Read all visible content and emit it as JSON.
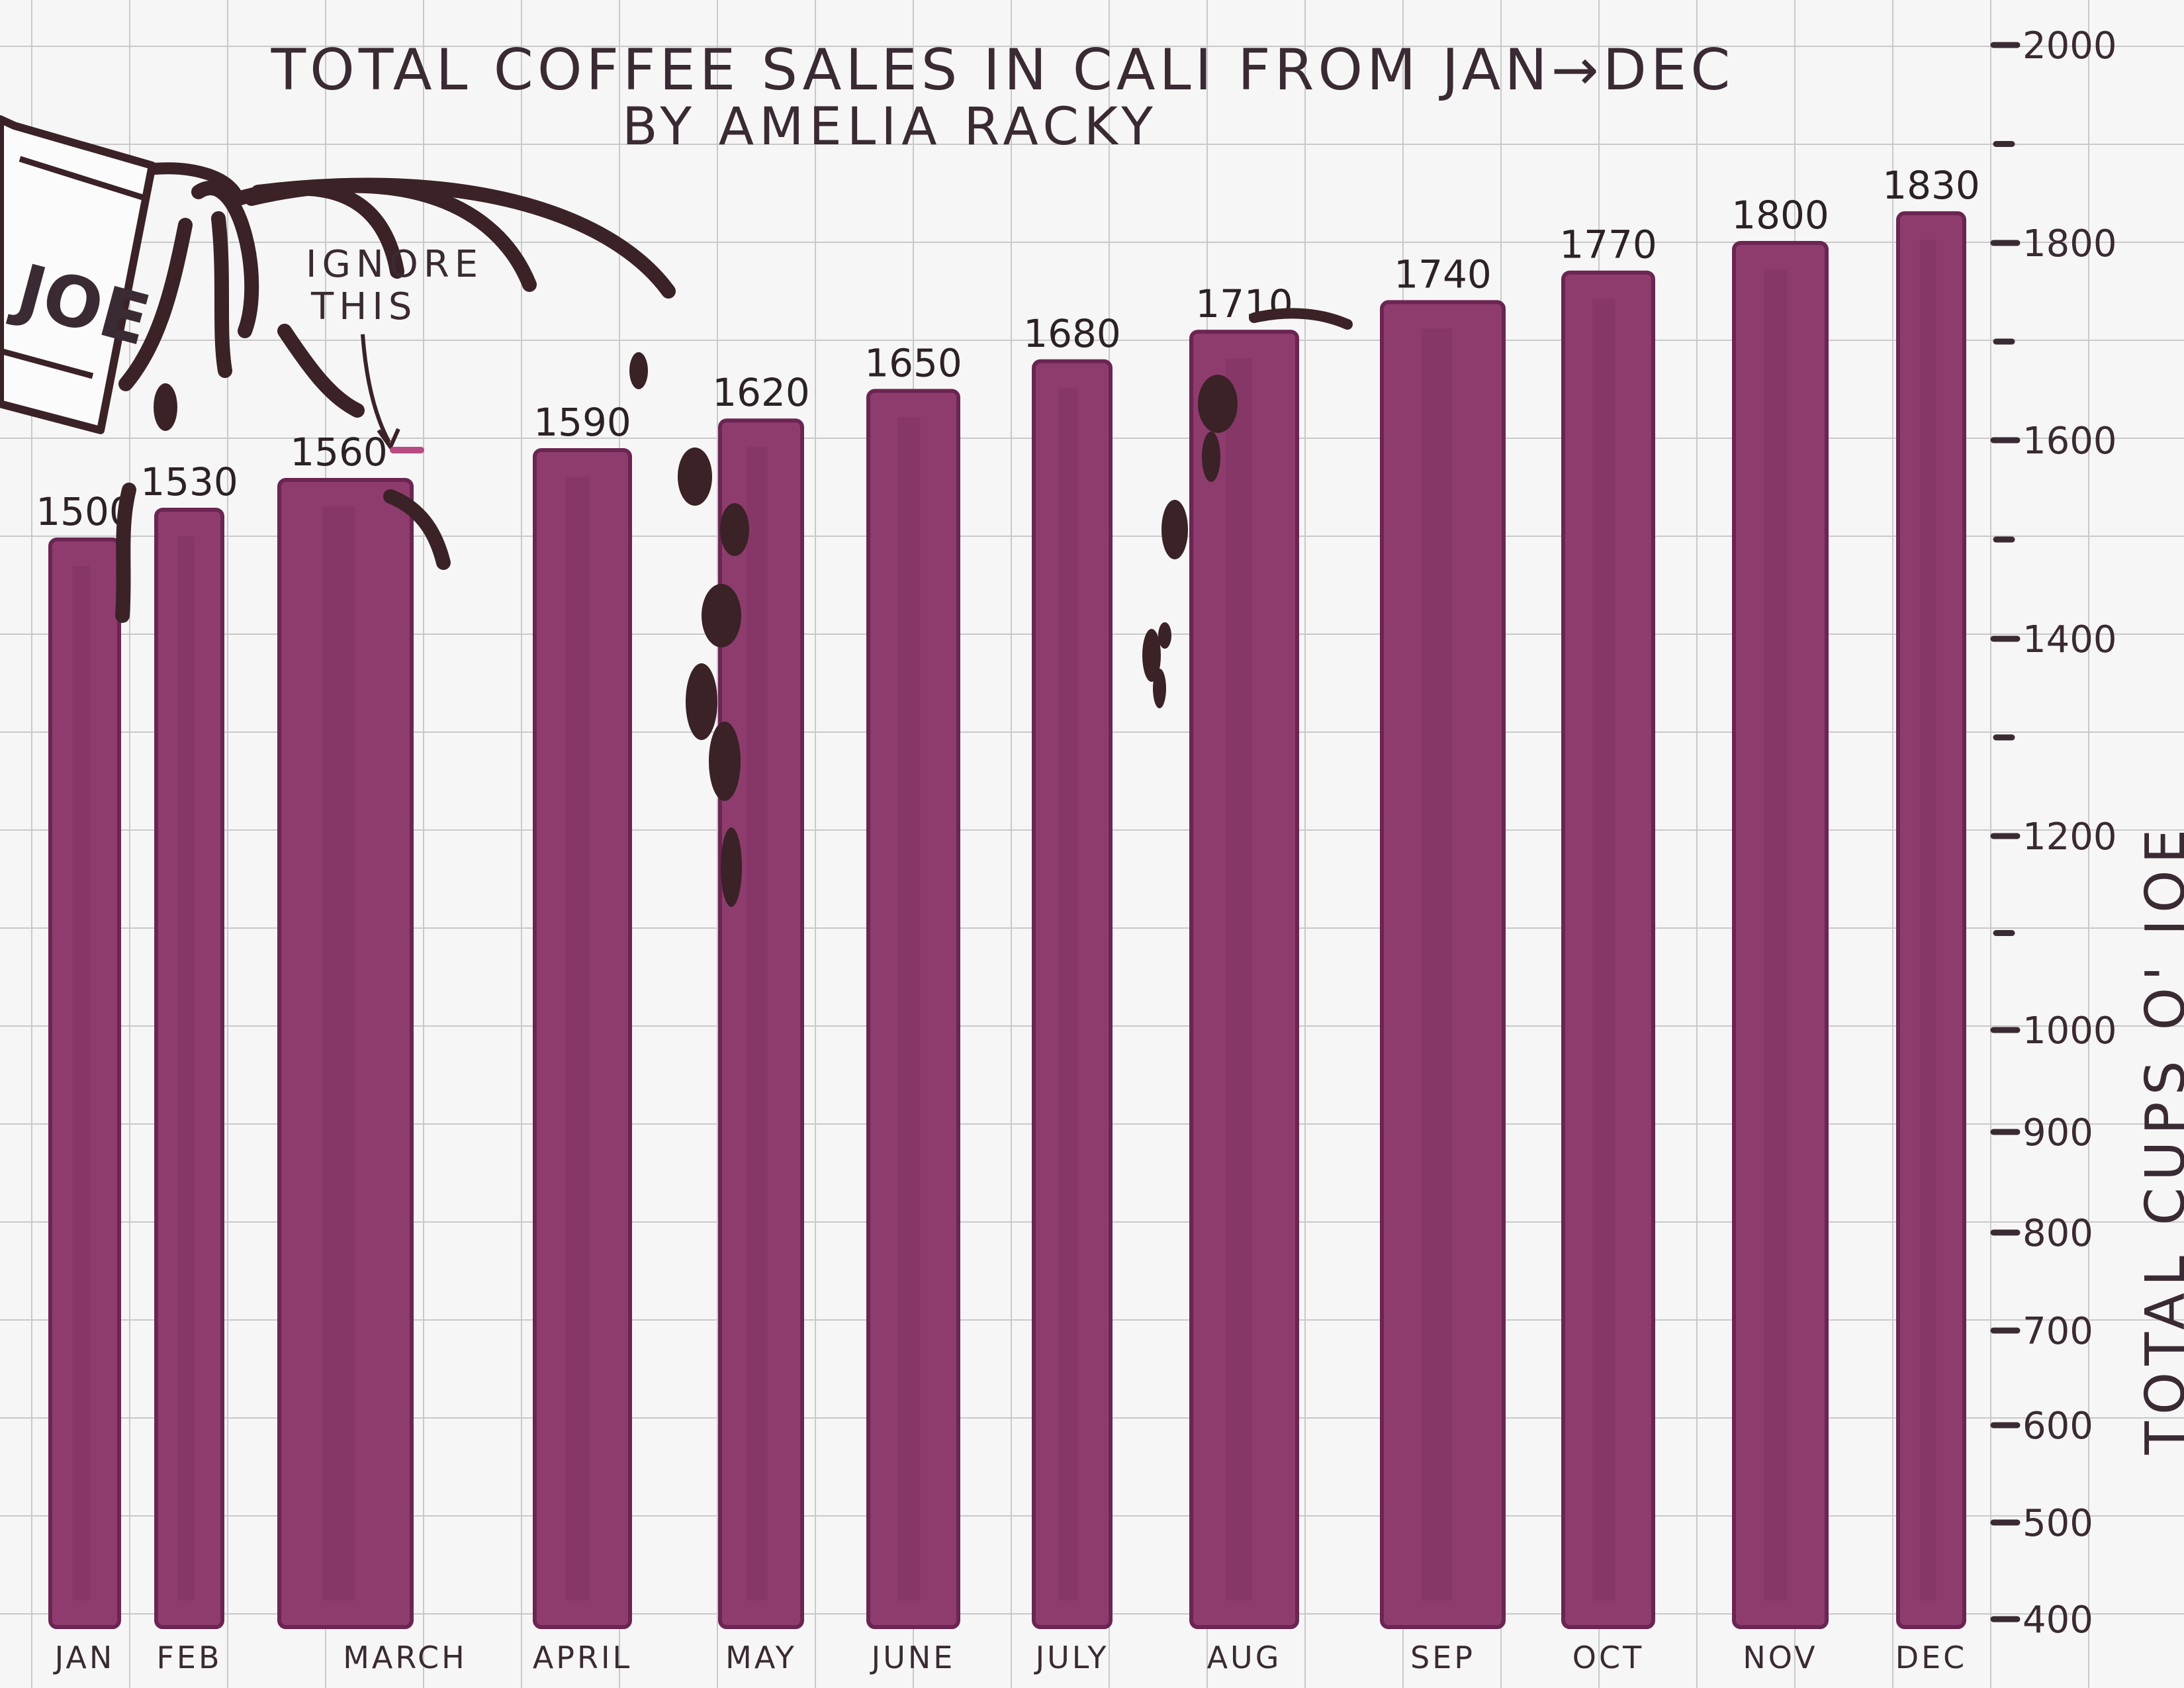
{
  "chart_data": {
    "type": "bar",
    "title": "TOTAL COFFEE SALES IN CALI FROM JAN→DEC",
    "subtitle": "BY AMELIA RACKY",
    "categories": [
      "JAN",
      "FEB",
      "MARCH",
      "APRIL",
      "MAY",
      "JUNE",
      "JULY",
      "AUG",
      "SEP",
      "OCT",
      "NOV",
      "DEC"
    ],
    "values": [
      1500,
      1530,
      1560,
      1590,
      1620,
      1650,
      1680,
      1710,
      1740,
      1770,
      1800,
      1830
    ],
    "data_labels": [
      "1500",
      "1530",
      "1560",
      "1590",
      "1620",
      "1650",
      "1680",
      "1710",
      "1740",
      "1770",
      "1800",
      "1830"
    ],
    "xlabel": "",
    "ylabel": "TOTAL CUPS O' JOE",
    "ylim": [
      400,
      2000
    ],
    "y_ticks": [
      {
        "value": 400,
        "label": "400"
      },
      {
        "value": 500,
        "label": "500"
      },
      {
        "value": 600,
        "label": "600"
      },
      {
        "value": 700,
        "label": "700"
      },
      {
        "value": 800,
        "label": "800"
      },
      {
        "value": 900,
        "label": "900"
      },
      {
        "value": 1000,
        "label": "1000"
      },
      {
        "value": 1200,
        "label": "1200"
      },
      {
        "value": 1400,
        "label": "1400"
      },
      {
        "value": 1600,
        "label": "1600"
      },
      {
        "value": 1800,
        "label": "1800"
      },
      {
        "value": 2000,
        "label": "2000"
      }
    ],
    "y_axis_side": "right",
    "grid": true,
    "bar_color": "#8e3c6e",
    "bar_edge_color": "#6b2553"
  },
  "decorations": {
    "cup_text": "JOE",
    "note_text_line1": "IGNORE",
    "note_text_line2": "THIS",
    "drip_color": "#3a2226"
  }
}
